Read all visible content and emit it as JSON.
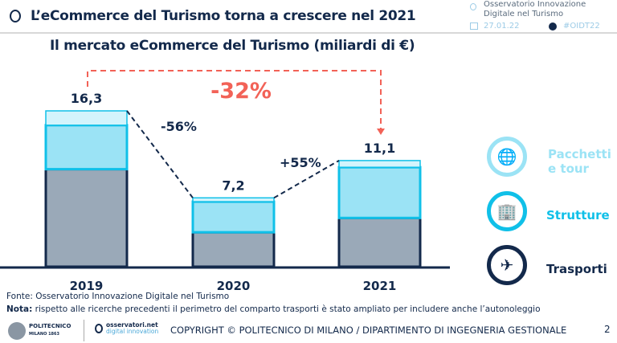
{
  "header": {
    "title": "L’eCommerce del Turismo torna a crescere nel 2021",
    "observatory": "Osservatorio Innovazione Digitale nel Turismo",
    "observatory_line1": "Osservatorio Innovazione",
    "observatory_line2": "Digitale nel Turismo",
    "date": "27.01.22",
    "hashtag": "#OIDT22"
  },
  "chart_data": {
    "type": "bar",
    "stacked": true,
    "title": "Il mercato eCommerce del Turismo (miliardi di €)",
    "categories": [
      "2019",
      "2020",
      "2021"
    ],
    "totals": [
      "16,3",
      "7,2",
      "11,1"
    ],
    "total_values": [
      16.3,
      7.2,
      11.1
    ],
    "series": [
      {
        "name": "Trasporti",
        "values": [
          10.2,
          3.6,
          5.1
        ],
        "color": "#9aa9b8"
      },
      {
        "name": "Strutture",
        "values": [
          4.6,
          3.2,
          5.3
        ],
        "color": "#9be3f5"
      },
      {
        "name": "Pacchetti e tour",
        "values": [
          1.5,
          0.4,
          0.7
        ],
        "color": "#d3f4fc"
      }
    ],
    "annotations": {
      "change_2019_2020": "-56%",
      "change_2020_2021": "+55%",
      "change_2019_2021": "-32%"
    },
    "colors": {
      "accent_red": "#f26257",
      "navy": "#13294b",
      "cyan": "#10c0e8"
    },
    "ylim": [
      0,
      16.3
    ],
    "grid": false,
    "legend_position": "right"
  },
  "legend": [
    {
      "label_line1": "Pacchetti",
      "label_line2": "e tour",
      "icon": "camera-globe-icon",
      "color": "#9be3f5"
    },
    {
      "label_line1": "Strutture",
      "icon": "building-icon",
      "color": "#10c0e8"
    },
    {
      "label_line1": "Trasporti",
      "icon": "plane-truck-icon",
      "color": "#13294b"
    }
  ],
  "footer": {
    "source": "Fonte: Osservatorio Innovazione Digitale nel Turismo",
    "note_label": "Nota:",
    "note_text": " rispetto alle ricerche precedenti il perimetro del comparto trasporti è stato ampliato per includere anche l’autonoleggio",
    "polimi": "POLITECNICO",
    "polimi_sub": "MILANO 1863",
    "osservatori": "osservatori.net",
    "osservatori_sub": "digital innovation",
    "copyright": "COPYRIGHT © POLITECNICO DI MILANO / DIPARTIMENTO DI INGEGNERIA GESTIONALE",
    "page": "2"
  }
}
